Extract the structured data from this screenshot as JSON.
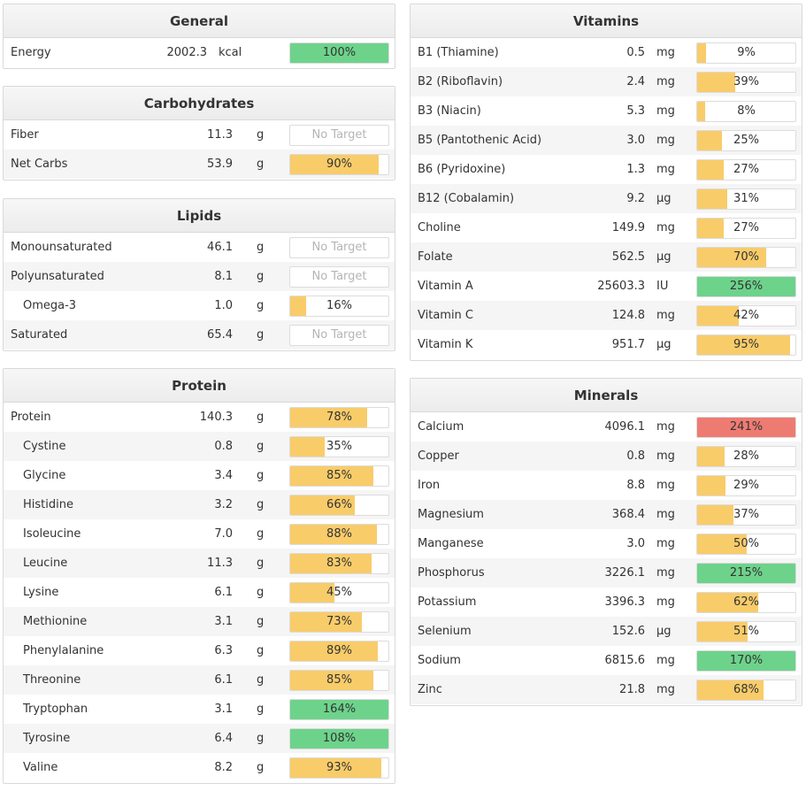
{
  "colors": {
    "yellow": "#f9cc6a",
    "green": "#6dd38b",
    "red": "#ee7b72"
  },
  "general": {
    "title": "General",
    "rows": [
      {
        "name": "Energy",
        "amount": "2002.3",
        "unit": "kcal",
        "pct": 100,
        "label": "100%",
        "color": "green"
      }
    ]
  },
  "carbohydrates": {
    "title": "Carbohydrates",
    "rows": [
      {
        "name": "Fiber",
        "amount": "11.3",
        "unit": "g",
        "pct": null,
        "label": "No Target"
      },
      {
        "name": "Net Carbs",
        "amount": "53.9",
        "unit": "g",
        "pct": 90,
        "label": "90%",
        "color": "yellow"
      }
    ]
  },
  "lipids": {
    "title": "Lipids",
    "rows": [
      {
        "name": "Monounsaturated",
        "amount": "46.1",
        "unit": "g",
        "pct": null,
        "label": "No Target"
      },
      {
        "name": "Polyunsaturated",
        "amount": "8.1",
        "unit": "g",
        "pct": null,
        "label": "No Target"
      },
      {
        "name": "Omega-3",
        "amount": "1.0",
        "unit": "g",
        "pct": 16,
        "label": "16%",
        "color": "yellow",
        "sub": true
      },
      {
        "name": "Saturated",
        "amount": "65.4",
        "unit": "g",
        "pct": null,
        "label": "No Target"
      }
    ]
  },
  "protein": {
    "title": "Protein",
    "rows": [
      {
        "name": "Protein",
        "amount": "140.3",
        "unit": "g",
        "pct": 78,
        "label": "78%",
        "color": "yellow"
      },
      {
        "name": "Cystine",
        "amount": "0.8",
        "unit": "g",
        "pct": 35,
        "label": "35%",
        "color": "yellow",
        "sub": true
      },
      {
        "name": "Glycine",
        "amount": "3.4",
        "unit": "g",
        "pct": 85,
        "label": "85%",
        "color": "yellow",
        "sub": true
      },
      {
        "name": "Histidine",
        "amount": "3.2",
        "unit": "g",
        "pct": 66,
        "label": "66%",
        "color": "yellow",
        "sub": true
      },
      {
        "name": "Isoleucine",
        "amount": "7.0",
        "unit": "g",
        "pct": 88,
        "label": "88%",
        "color": "yellow",
        "sub": true
      },
      {
        "name": "Leucine",
        "amount": "11.3",
        "unit": "g",
        "pct": 83,
        "label": "83%",
        "color": "yellow",
        "sub": true
      },
      {
        "name": "Lysine",
        "amount": "6.1",
        "unit": "g",
        "pct": 45,
        "label": "45%",
        "color": "yellow",
        "sub": true
      },
      {
        "name": "Methionine",
        "amount": "3.1",
        "unit": "g",
        "pct": 73,
        "label": "73%",
        "color": "yellow",
        "sub": true
      },
      {
        "name": "Phenylalanine",
        "amount": "6.3",
        "unit": "g",
        "pct": 89,
        "label": "89%",
        "color": "yellow",
        "sub": true
      },
      {
        "name": "Threonine",
        "amount": "6.1",
        "unit": "g",
        "pct": 85,
        "label": "85%",
        "color": "yellow",
        "sub": true
      },
      {
        "name": "Tryptophan",
        "amount": "3.1",
        "unit": "g",
        "pct": 164,
        "label": "164%",
        "color": "green",
        "sub": true
      },
      {
        "name": "Tyrosine",
        "amount": "6.4",
        "unit": "g",
        "pct": 108,
        "label": "108%",
        "color": "green",
        "sub": true
      },
      {
        "name": "Valine",
        "amount": "8.2",
        "unit": "g",
        "pct": 93,
        "label": "93%",
        "color": "yellow",
        "sub": true
      }
    ]
  },
  "vitamins": {
    "title": "Vitamins",
    "rows": [
      {
        "name": "B1 (Thiamine)",
        "amount": "0.5",
        "unit": "mg",
        "pct": 9,
        "label": "9%",
        "color": "yellow"
      },
      {
        "name": "B2 (Riboflavin)",
        "amount": "2.4",
        "unit": "mg",
        "pct": 39,
        "label": "39%",
        "color": "yellow"
      },
      {
        "name": "B3 (Niacin)",
        "amount": "5.3",
        "unit": "mg",
        "pct": 8,
        "label": "8%",
        "color": "yellow"
      },
      {
        "name": "B5 (Pantothenic Acid)",
        "amount": "3.0",
        "unit": "mg",
        "pct": 25,
        "label": "25%",
        "color": "yellow"
      },
      {
        "name": "B6 (Pyridoxine)",
        "amount": "1.3",
        "unit": "mg",
        "pct": 27,
        "label": "27%",
        "color": "yellow"
      },
      {
        "name": "B12 (Cobalamin)",
        "amount": "9.2",
        "unit": "µg",
        "pct": 31,
        "label": "31%",
        "color": "yellow"
      },
      {
        "name": "Choline",
        "amount": "149.9",
        "unit": "mg",
        "pct": 27,
        "label": "27%",
        "color": "yellow"
      },
      {
        "name": "Folate",
        "amount": "562.5",
        "unit": "µg",
        "pct": 70,
        "label": "70%",
        "color": "yellow"
      },
      {
        "name": "Vitamin A",
        "amount": "25603.3",
        "unit": "IU",
        "pct": 256,
        "label": "256%",
        "color": "green"
      },
      {
        "name": "Vitamin C",
        "amount": "124.8",
        "unit": "mg",
        "pct": 42,
        "label": "42%",
        "color": "yellow"
      },
      {
        "name": "Vitamin K",
        "amount": "951.7",
        "unit": "µg",
        "pct": 95,
        "label": "95%",
        "color": "yellow"
      }
    ]
  },
  "minerals": {
    "title": "Minerals",
    "rows": [
      {
        "name": "Calcium",
        "amount": "4096.1",
        "unit": "mg",
        "pct": 241,
        "label": "241%",
        "color": "red"
      },
      {
        "name": "Copper",
        "amount": "0.8",
        "unit": "mg",
        "pct": 28,
        "label": "28%",
        "color": "yellow"
      },
      {
        "name": "Iron",
        "amount": "8.8",
        "unit": "mg",
        "pct": 29,
        "label": "29%",
        "color": "yellow"
      },
      {
        "name": "Magnesium",
        "amount": "368.4",
        "unit": "mg",
        "pct": 37,
        "label": "37%",
        "color": "yellow"
      },
      {
        "name": "Manganese",
        "amount": "3.0",
        "unit": "mg",
        "pct": 50,
        "label": "50%",
        "color": "yellow"
      },
      {
        "name": "Phosphorus",
        "amount": "3226.1",
        "unit": "mg",
        "pct": 215,
        "label": "215%",
        "color": "green"
      },
      {
        "name": "Potassium",
        "amount": "3396.3",
        "unit": "mg",
        "pct": 62,
        "label": "62%",
        "color": "yellow"
      },
      {
        "name": "Selenium",
        "amount": "152.6",
        "unit": "µg",
        "pct": 51,
        "label": "51%",
        "color": "yellow"
      },
      {
        "name": "Sodium",
        "amount": "6815.6",
        "unit": "mg",
        "pct": 170,
        "label": "170%",
        "color": "green"
      },
      {
        "name": "Zinc",
        "amount": "21.8",
        "unit": "mg",
        "pct": 68,
        "label": "68%",
        "color": "yellow"
      }
    ]
  }
}
